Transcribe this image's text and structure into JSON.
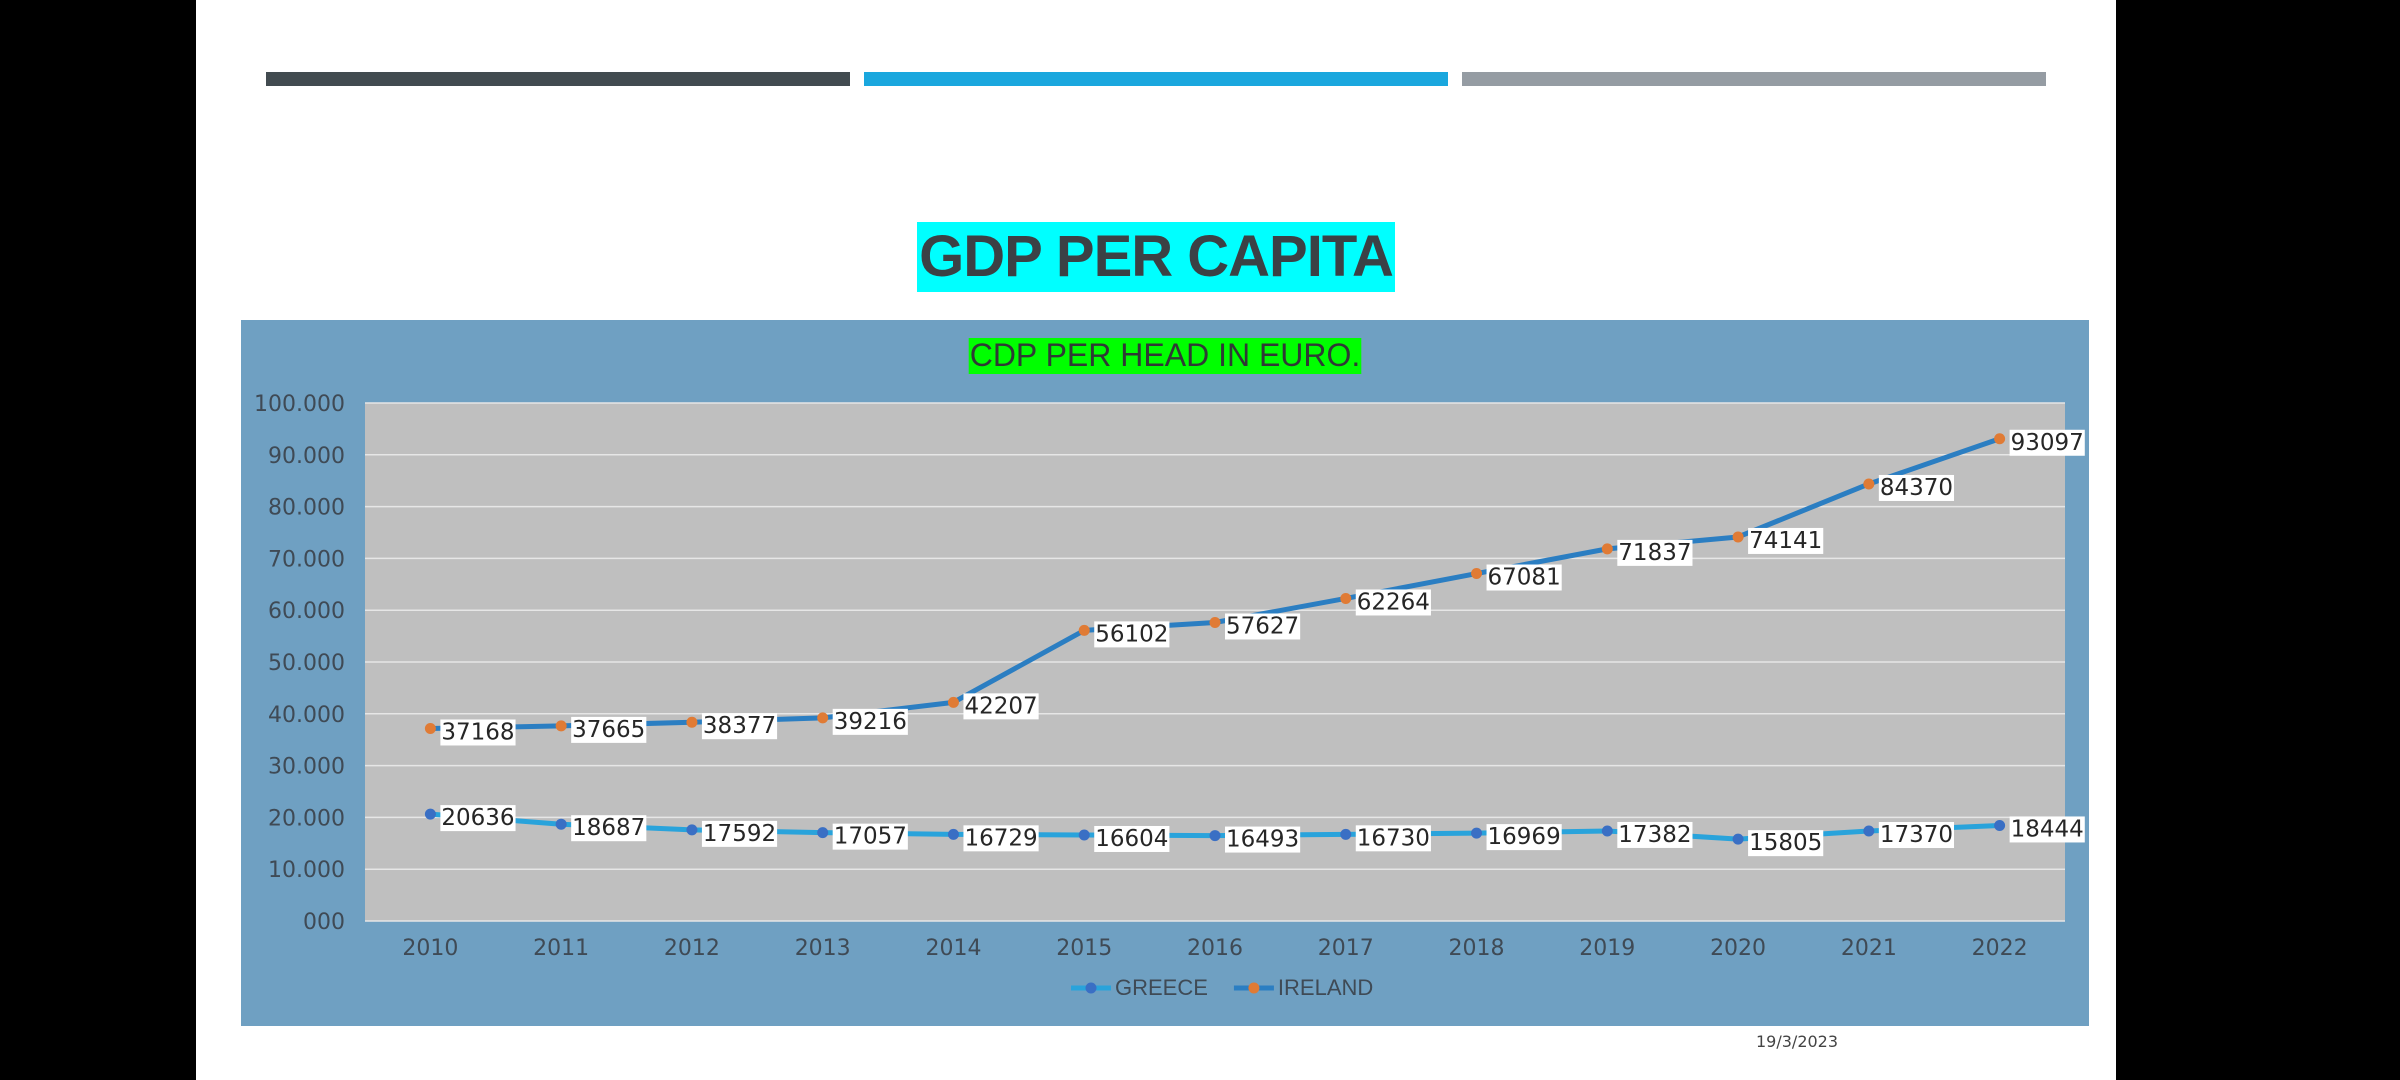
{
  "slide": {
    "title": "GDP PER CAPITA",
    "date": "19/3/2023"
  },
  "colors": {
    "background": "#000000",
    "slide": "#ffffff",
    "deco_bars": [
      "#424b50",
      "#1aa7de",
      "#959ca3"
    ],
    "title_text": "#3b4145",
    "title_highlight": "#00ffff",
    "chart_panel": "#6fa0c2",
    "plot_area": "#bfbfbf",
    "chart_title_highlight": "#00ff00",
    "chart_title_text": "#2f3a35",
    "gridline": "#e6e6e6",
    "axis_text": "#3f4a55"
  },
  "chart_data": {
    "type": "line",
    "title": "CDP PER HEAD IN EURO.",
    "xlabel": "",
    "ylabel": "",
    "categories": [
      "2010",
      "2011",
      "2012",
      "2013",
      "2014",
      "2015",
      "2016",
      "2017",
      "2018",
      "2019",
      "2020",
      "2021",
      "2022"
    ],
    "ylim": [
      0,
      100000
    ],
    "yticks": [
      0,
      10000,
      20000,
      30000,
      40000,
      50000,
      60000,
      70000,
      80000,
      90000,
      100000
    ],
    "ytick_labels": [
      "000",
      "10.000",
      "20.000",
      "30.000",
      "40.000",
      "50.000",
      "60.000",
      "70.000",
      "80.000",
      "90.000",
      "100.000"
    ],
    "grid": true,
    "legend_position": "bottom",
    "series": [
      {
        "name": "GREECE",
        "line_color": "#29a3db",
        "marker_color": "#3a6fc4",
        "values": [
          20636,
          18687,
          17592,
          17057,
          16729,
          16604,
          16493,
          16730,
          16969,
          17382,
          15805,
          17370,
          18444
        ]
      },
      {
        "name": "IRELAND",
        "line_color": "#2b7ec2",
        "marker_color": "#e07b35",
        "values": [
          37168,
          37665,
          38377,
          39216,
          42207,
          56102,
          57627,
          62264,
          67081,
          71837,
          74141,
          84370,
          93097
        ]
      }
    ]
  }
}
